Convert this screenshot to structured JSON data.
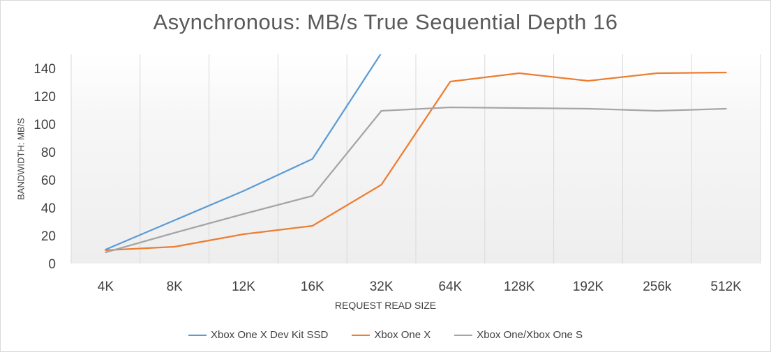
{
  "chart_data": {
    "type": "line",
    "title": "Asynchronous: MB/s True Sequential  Depth 16",
    "xlabel": "REQUEST READ SIZE",
    "ylabel": "BANDWIDTH: MB/S",
    "categories": [
      "4K",
      "8K",
      "12K",
      "16K",
      "32K",
      "64K",
      "128K",
      "192K",
      "256k",
      "512K"
    ],
    "ylim": [
      0,
      150
    ],
    "yticks": [
      0,
      20,
      40,
      60,
      80,
      100,
      120,
      140
    ],
    "grid": "vertical",
    "legend_position": "bottom",
    "series": [
      {
        "name": "Xbox One X Dev Kit SSD",
        "color": "#5b9bd5",
        "values": [
          10,
          31,
          52,
          75,
          151,
          null,
          null,
          null,
          null,
          null
        ]
      },
      {
        "name": "Xbox One X",
        "color": "#ed7d31",
        "values": [
          9.5,
          12,
          21,
          27,
          56.5,
          130.5,
          136.5,
          131,
          136.5,
          137
        ]
      },
      {
        "name": "Xbox One/Xbox One S",
        "color": "#a5a5a5",
        "values": [
          8,
          22,
          35.5,
          48.5,
          109.5,
          112,
          111.5,
          111,
          109.5,
          111
        ]
      }
    ]
  }
}
